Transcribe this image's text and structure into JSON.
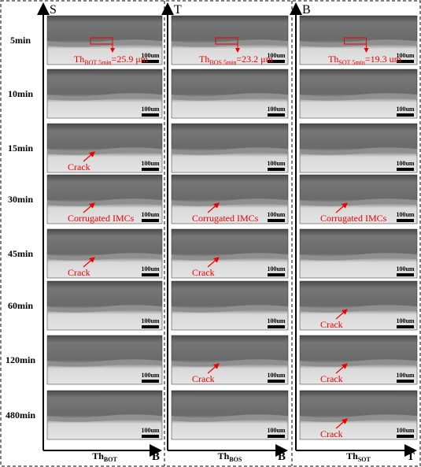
{
  "rows": [
    "5min",
    "10min",
    "15min",
    "30min",
    "45min",
    "60min",
    "120min",
    "480min"
  ],
  "columns": [
    {
      "top": "S",
      "axis_label": {
        "main": "Th",
        "sub": "BOT"
      },
      "end": "B",
      "thickness": {
        "main": "Th",
        "sub": "BOT 5min",
        "value": "=25.9 μm"
      },
      "scale_bars": [
        "100um",
        "100um",
        "100um",
        "100um",
        "100um",
        "100um",
        "100um",
        "100um"
      ],
      "annotations": [
        null,
        null,
        "Crack",
        "Corrugated IMCs",
        "Crack",
        null,
        null,
        null
      ]
    },
    {
      "top": "T",
      "axis_label": {
        "main": "Th",
        "sub": "BOS"
      },
      "end": "B",
      "thickness": {
        "main": "Th",
        "sub": "BOS 5min",
        "value": "=23.2 μm"
      },
      "scale_bars": [
        "100um",
        "100um",
        "100um",
        "100um",
        "100um",
        "100um",
        "100um",
        "100um"
      ],
      "annotations": [
        null,
        null,
        null,
        "Corrugated IMCs",
        "Crack",
        null,
        "Crack",
        null
      ]
    },
    {
      "top": "B",
      "axis_label": {
        "main": "Th",
        "sub": "SOT"
      },
      "end": "T",
      "thickness": {
        "main": "Th",
        "sub": "SOT 5min",
        "value": "=19.3 um"
      },
      "scale_bars": [
        "100um",
        "100um",
        "100um",
        "100um",
        "100um",
        "100um",
        "100um",
        "100um"
      ],
      "annotations": [
        null,
        null,
        null,
        "Corrugated IMCs",
        null,
        "Crack",
        "Crack",
        "Crack"
      ]
    }
  ]
}
